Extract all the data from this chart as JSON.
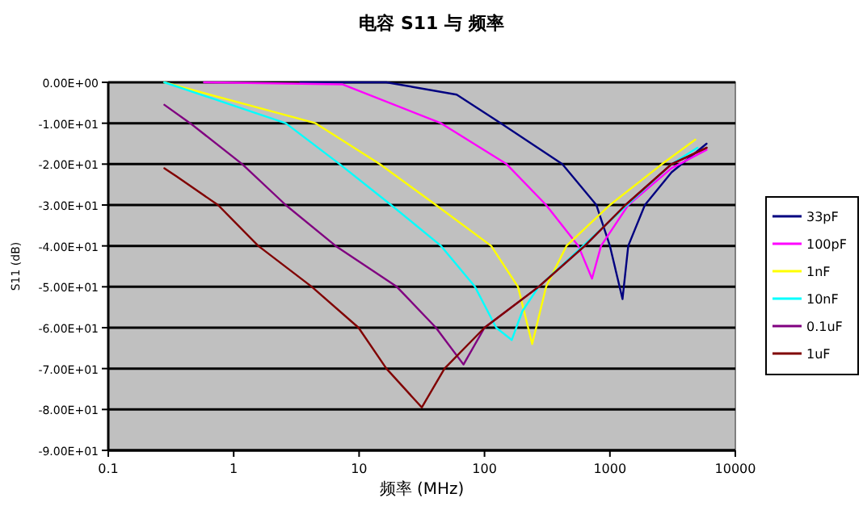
{
  "chart_data": {
    "type": "line",
    "title": "电容 S11 与 频率",
    "xlabel": "频率 (MHz)",
    "ylabel": "S11 (dB)",
    "log": "x",
    "grid": "y",
    "legend": "right",
    "xlim": [
      0.1,
      10000
    ],
    "xticks": [
      0.1,
      1,
      10,
      100,
      1000,
      10000
    ],
    "ylim": [
      -90,
      0
    ],
    "yticks": [
      {
        "value": 0,
        "label": "0.00E+00"
      },
      {
        "value": -10,
        "label": "-1.00E+01"
      },
      {
        "value": -20,
        "label": "-2.00E+01"
      },
      {
        "value": -30,
        "label": "-3.00E+01"
      },
      {
        "value": -40,
        "label": "-4.00E+01"
      },
      {
        "value": -50,
        "label": "-5.00E+01"
      },
      {
        "value": -60,
        "label": "-6.00E+01"
      },
      {
        "value": -70,
        "label": "-7.00E+01"
      },
      {
        "value": -80,
        "label": "-8.00E+01"
      },
      {
        "value": -90,
        "label": "-9.00E+01"
      }
    ],
    "series": [
      {
        "name": "33pF",
        "color": "#000080",
        "x": [
          3.4,
          16.5,
          60,
          135,
          417,
          780,
          1000,
          1260,
          1400,
          1900,
          3100,
          5900
        ],
        "values": [
          0,
          0,
          -3,
          -10,
          -20,
          -30,
          -40,
          -53,
          -40,
          -30,
          -22,
          -15
        ]
      },
      {
        "name": "100pF",
        "color": "#ff00ff",
        "x": [
          0.58,
          7.4,
          45,
          150,
          310,
          560,
          720,
          850,
          1400,
          3100,
          5900
        ],
        "values": [
          0,
          -0.5,
          -10,
          -20,
          -30,
          -40,
          -48,
          -40,
          -30,
          -21,
          -16.5
        ]
      },
      {
        "name": "1nF",
        "color": "#ffff00",
        "x": [
          0.28,
          4.5,
          14.6,
          41,
          113,
          185,
          240,
          310,
          450,
          1000,
          2600,
          4800
        ],
        "values": [
          0,
          -10,
          -20,
          -30,
          -40,
          -50,
          -64,
          -50,
          -40,
          -30,
          -20,
          -14
        ]
      },
      {
        "name": "10nF",
        "color": "#00ffff",
        "x": [
          0.28,
          2.6,
          7,
          18,
          45,
          84,
          124,
          165,
          200,
          270,
          3100,
          5000
        ],
        "values": [
          0,
          -10,
          -20,
          -30,
          -40,
          -50,
          -60,
          -63,
          -56,
          -50,
          -20,
          -16
        ]
      },
      {
        "name": "0.1uF",
        "color": "#800080",
        "x": [
          0.28,
          0.45,
          1.17,
          2.6,
          6.5,
          20,
          41,
          68,
          100,
          270,
          630,
          1330,
          3100,
          5900
        ],
        "values": [
          -5.5,
          -10,
          -20,
          -30,
          -40,
          -50,
          -60,
          -69,
          -60,
          -50,
          -40,
          -30,
          -20,
          -16
        ]
      },
      {
        "name": "1uF",
        "color": "#800000",
        "x": [
          0.28,
          0.35,
          0.75,
          1.57,
          4.2,
          9.9,
          16.5,
          31.6,
          48,
          100,
          270,
          630,
          1330,
          3100,
          5900
        ],
        "values": [
          -21,
          -23,
          -30,
          -40,
          -50,
          -60,
          -70,
          -79.5,
          -70,
          -60,
          -50,
          -40,
          -30,
          -20,
          -16
        ]
      }
    ]
  }
}
